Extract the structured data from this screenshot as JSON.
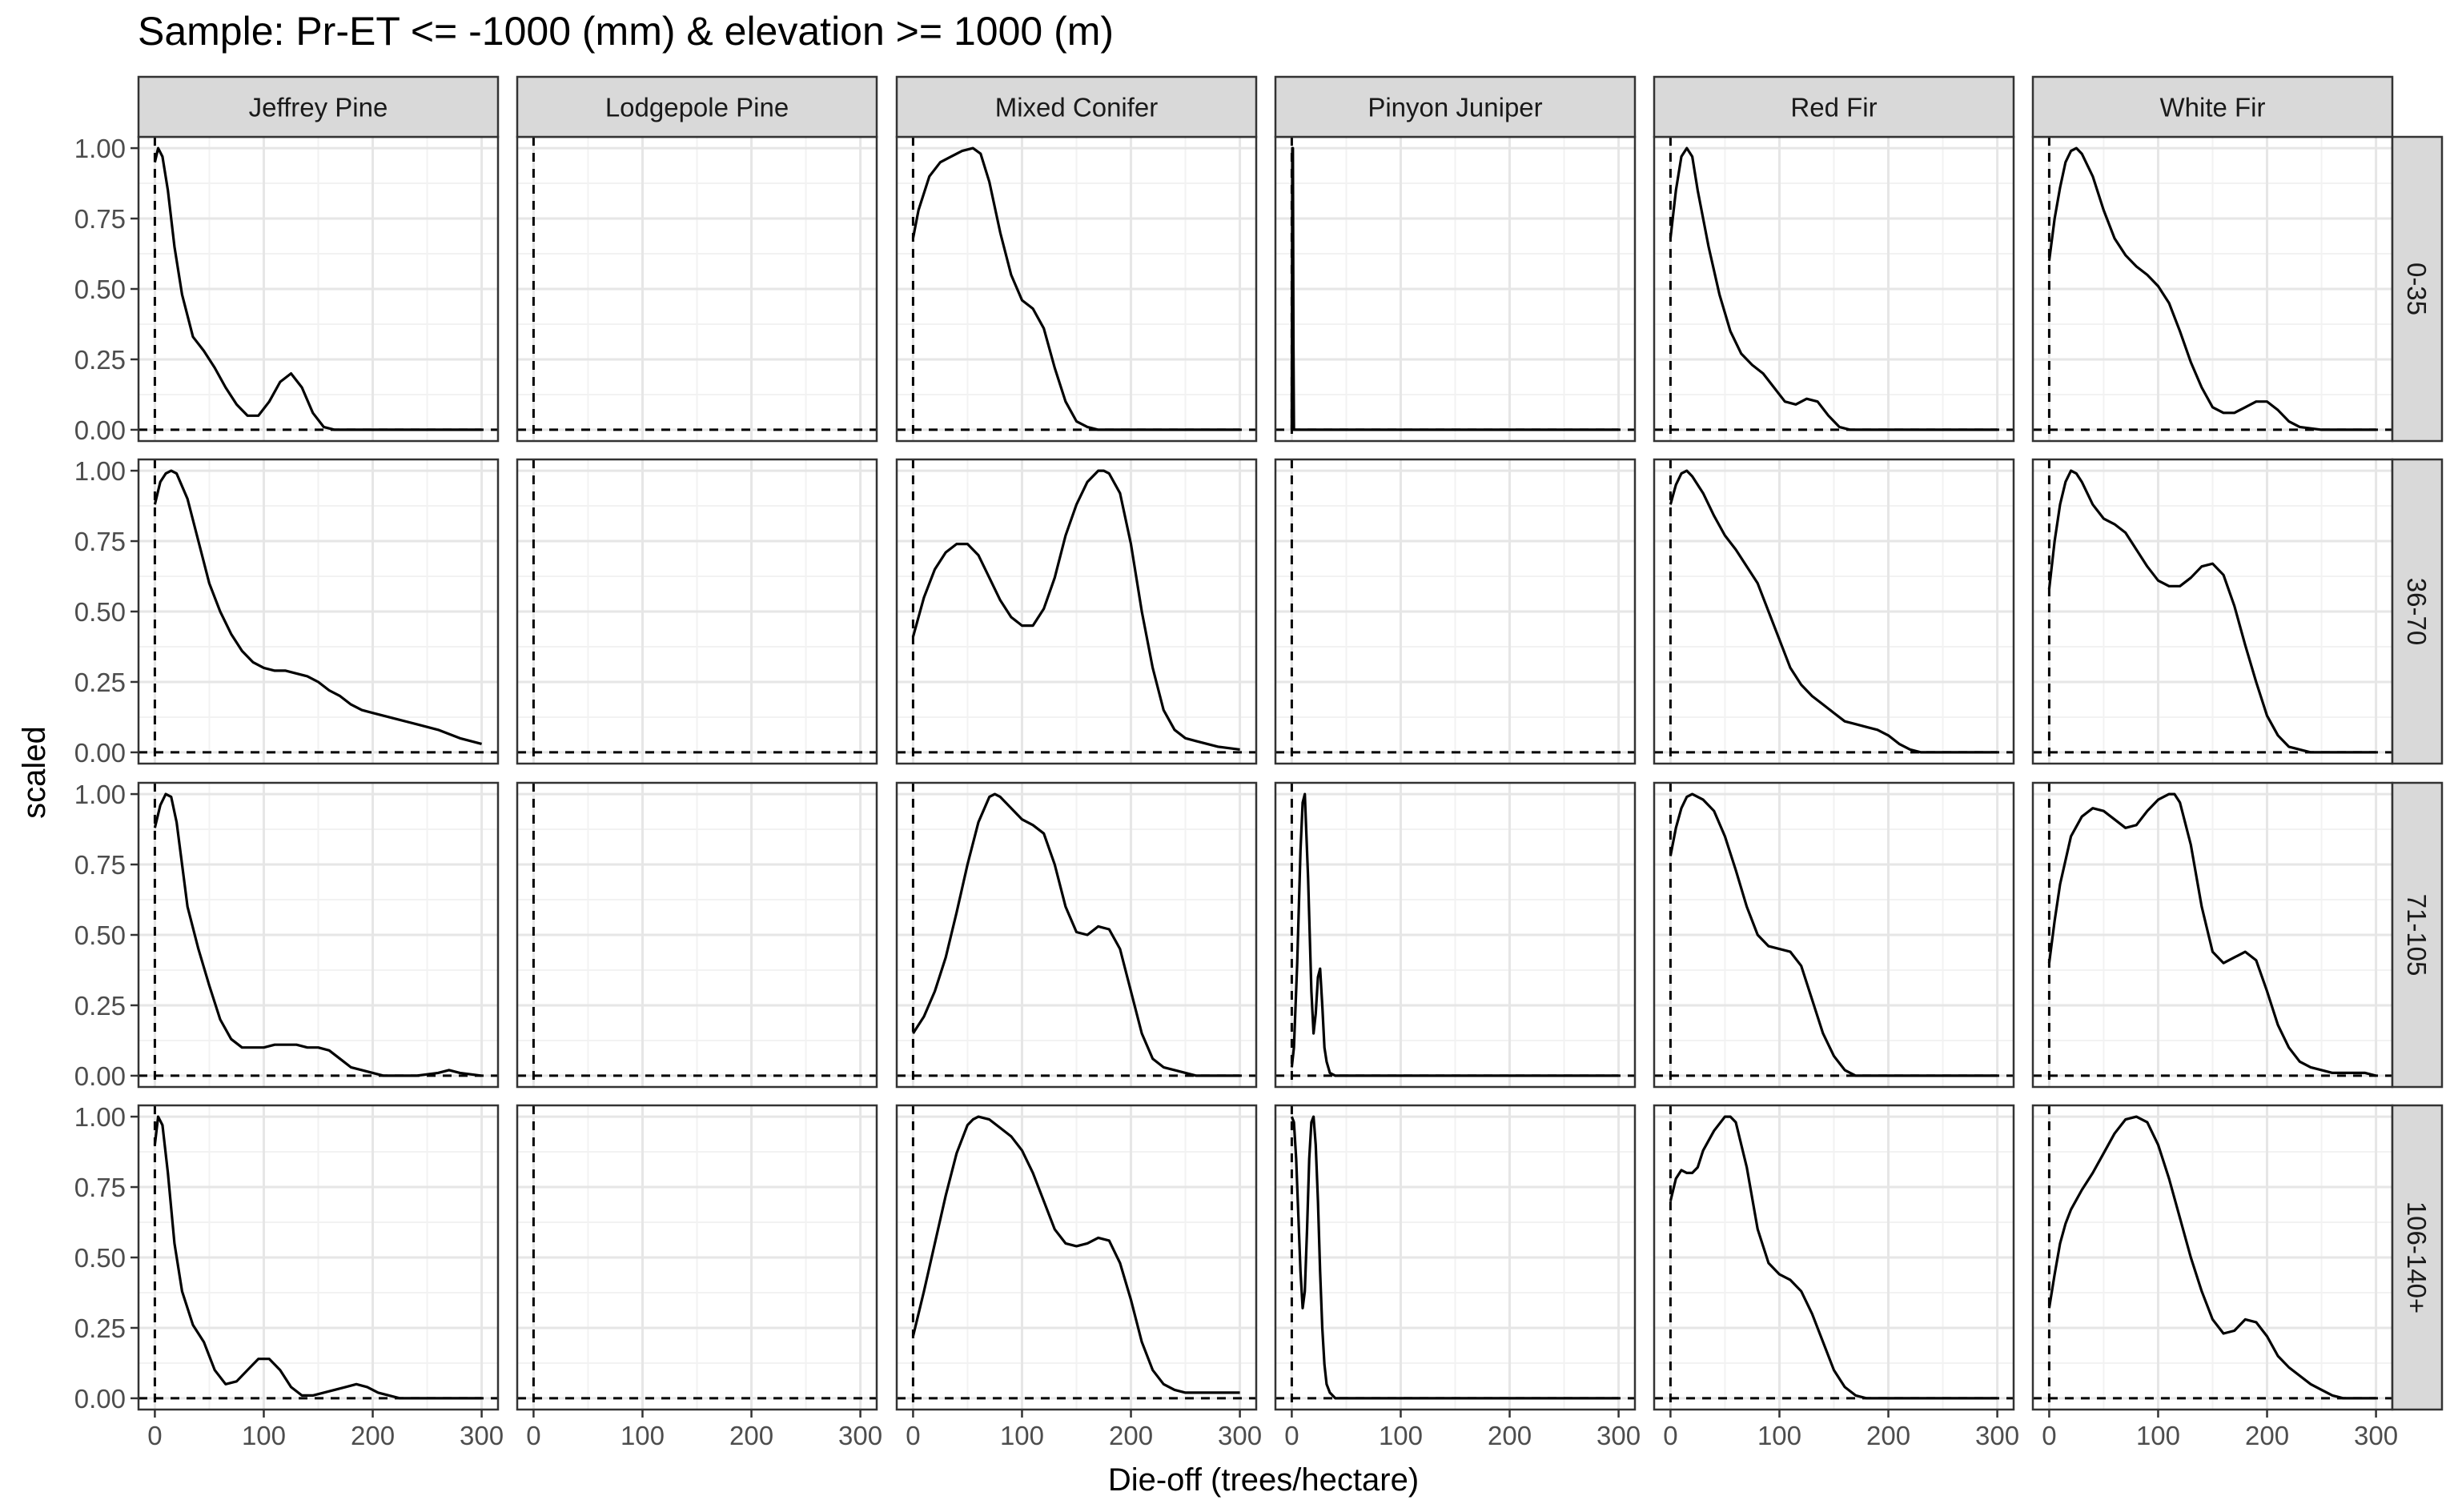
{
  "chart_data": {
    "type": "line",
    "title": "Sample: Pr-ET <= -1000 (mm) & elevation >= 1000 (m)",
    "xlabel": "Die-off (trees/hectare)",
    "ylabel": "scaled",
    "xlim": [
      -15,
      315
    ],
    "ylim": [
      -0.04,
      1.04
    ],
    "xticks": [
      0,
      100,
      200,
      300
    ],
    "yticks": [
      0.0,
      0.25,
      0.5,
      0.75,
      1.0
    ],
    "xtick_labels": [
      "0",
      "100",
      "200",
      "300"
    ],
    "ytick_labels": [
      "0.00",
      "0.25",
      "0.50",
      "0.75",
      "1.00"
    ],
    "grid": true,
    "columns": [
      "Jeffrey Pine",
      "Lodgepole Pine",
      "Mixed Conifer",
      "Pinyon Juniper",
      "Red Fir",
      "White Fir"
    ],
    "rows": [
      "0-35",
      "36-70",
      "71-105",
      "106-140+"
    ],
    "reference_lines": {
      "vertical_x": 0,
      "horizontal_y": 0,
      "style": "dashed"
    },
    "panels": [
      [
        {
          "x": [
            0,
            3,
            7,
            12,
            18,
            25,
            35,
            45,
            55,
            65,
            75,
            85,
            95,
            105,
            115,
            125,
            135,
            145,
            155,
            165,
            175,
            185,
            200,
            250,
            300
          ],
          "y": [
            0.95,
            1.0,
            0.97,
            0.85,
            0.65,
            0.48,
            0.33,
            0.28,
            0.22,
            0.15,
            0.09,
            0.05,
            0.05,
            0.1,
            0.17,
            0.2,
            0.15,
            0.06,
            0.01,
            0,
            0,
            0,
            0,
            0,
            0
          ]
        },
        {
          "x": [],
          "y": []
        },
        {
          "x": [
            0,
            5,
            15,
            25,
            35,
            45,
            55,
            62,
            70,
            80,
            90,
            100,
            110,
            120,
            130,
            140,
            150,
            160,
            170,
            180,
            200,
            250,
            300
          ],
          "y": [
            0.68,
            0.78,
            0.9,
            0.95,
            0.97,
            0.99,
            1.0,
            0.98,
            0.88,
            0.7,
            0.55,
            0.46,
            0.43,
            0.36,
            0.22,
            0.1,
            0.03,
            0.01,
            0,
            0,
            0,
            0,
            0
          ]
        },
        {
          "x": [
            0,
            0.5,
            1,
            1.5,
            2,
            3,
            300
          ],
          "y": [
            0.0,
            1.0,
            1.0,
            0.3,
            0.0,
            0.0,
            0.0
          ]
        },
        {
          "x": [
            0,
            5,
            10,
            15,
            20,
            25,
            35,
            45,
            55,
            65,
            75,
            85,
            95,
            105,
            115,
            125,
            135,
            145,
            155,
            165,
            180,
            200,
            250,
            300
          ],
          "y": [
            0.68,
            0.85,
            0.97,
            1.0,
            0.97,
            0.85,
            0.65,
            0.48,
            0.35,
            0.27,
            0.23,
            0.2,
            0.15,
            0.1,
            0.09,
            0.11,
            0.1,
            0.05,
            0.01,
            0,
            0,
            0,
            0,
            0
          ]
        },
        {
          "x": [
            0,
            5,
            10,
            15,
            20,
            25,
            30,
            40,
            50,
            60,
            70,
            80,
            90,
            100,
            110,
            120,
            130,
            140,
            150,
            160,
            170,
            180,
            190,
            200,
            210,
            220,
            230,
            250,
            300
          ],
          "y": [
            0.6,
            0.75,
            0.86,
            0.95,
            0.99,
            1.0,
            0.98,
            0.9,
            0.78,
            0.68,
            0.62,
            0.58,
            0.55,
            0.51,
            0.45,
            0.35,
            0.24,
            0.15,
            0.08,
            0.06,
            0.06,
            0.08,
            0.1,
            0.1,
            0.07,
            0.03,
            0.01,
            0,
            0
          ]
        }
      ],
      [
        {
          "x": [
            0,
            5,
            10,
            15,
            20,
            30,
            40,
            50,
            60,
            70,
            80,
            90,
            100,
            110,
            120,
            130,
            140,
            150,
            160,
            170,
            180,
            190,
            200,
            210,
            220,
            240,
            260,
            280,
            300
          ],
          "y": [
            0.88,
            0.96,
            0.99,
            1.0,
            0.99,
            0.9,
            0.75,
            0.6,
            0.5,
            0.42,
            0.36,
            0.32,
            0.3,
            0.29,
            0.29,
            0.28,
            0.27,
            0.25,
            0.22,
            0.2,
            0.17,
            0.15,
            0.14,
            0.13,
            0.12,
            0.1,
            0.08,
            0.05,
            0.03
          ]
        },
        {
          "x": [],
          "y": []
        },
        {
          "x": [
            0,
            10,
            20,
            30,
            40,
            50,
            60,
            70,
            80,
            90,
            100,
            110,
            120,
            130,
            140,
            150,
            160,
            170,
            175,
            180,
            190,
            200,
            210,
            220,
            230,
            240,
            250,
            260,
            270,
            280,
            300
          ],
          "y": [
            0.41,
            0.55,
            0.65,
            0.71,
            0.74,
            0.74,
            0.7,
            0.62,
            0.54,
            0.48,
            0.45,
            0.45,
            0.51,
            0.62,
            0.77,
            0.88,
            0.96,
            1.0,
            1.0,
            0.99,
            0.92,
            0.74,
            0.5,
            0.3,
            0.15,
            0.08,
            0.05,
            0.04,
            0.03,
            0.02,
            0.01
          ]
        },
        {
          "x": [],
          "y": []
        },
        {
          "x": [
            0,
            5,
            10,
            15,
            20,
            30,
            40,
            50,
            60,
            70,
            80,
            90,
            100,
            110,
            120,
            130,
            140,
            150,
            160,
            170,
            180,
            190,
            200,
            210,
            220,
            230,
            250,
            300
          ],
          "y": [
            0.88,
            0.95,
            0.99,
            1.0,
            0.98,
            0.92,
            0.84,
            0.77,
            0.72,
            0.66,
            0.6,
            0.5,
            0.4,
            0.3,
            0.24,
            0.2,
            0.17,
            0.14,
            0.11,
            0.1,
            0.09,
            0.08,
            0.06,
            0.03,
            0.01,
            0,
            0,
            0
          ]
        },
        {
          "x": [
            0,
            5,
            10,
            15,
            20,
            25,
            30,
            40,
            50,
            60,
            70,
            80,
            90,
            100,
            110,
            120,
            130,
            140,
            150,
            160,
            170,
            180,
            190,
            200,
            210,
            220,
            230,
            240,
            250,
            270,
            300
          ],
          "y": [
            0.58,
            0.75,
            0.88,
            0.96,
            1.0,
            0.99,
            0.96,
            0.88,
            0.83,
            0.81,
            0.78,
            0.72,
            0.66,
            0.61,
            0.59,
            0.59,
            0.62,
            0.66,
            0.67,
            0.63,
            0.52,
            0.38,
            0.25,
            0.13,
            0.06,
            0.02,
            0.01,
            0,
            0,
            0,
            0
          ]
        }
      ],
      [
        {
          "x": [
            0,
            5,
            10,
            15,
            20,
            25,
            30,
            40,
            50,
            60,
            70,
            80,
            90,
            100,
            110,
            120,
            130,
            140,
            150,
            160,
            170,
            180,
            190,
            200,
            210,
            220,
            240,
            260,
            270,
            280,
            300
          ],
          "y": [
            0.88,
            0.96,
            1.0,
            0.99,
            0.9,
            0.75,
            0.6,
            0.45,
            0.32,
            0.2,
            0.13,
            0.1,
            0.1,
            0.1,
            0.11,
            0.11,
            0.11,
            0.1,
            0.1,
            0.09,
            0.06,
            0.03,
            0.02,
            0.01,
            0,
            0,
            0,
            0.01,
            0.02,
            0.01,
            0
          ]
        },
        {
          "x": [],
          "y": []
        },
        {
          "x": [
            0,
            10,
            20,
            30,
            40,
            50,
            60,
            70,
            75,
            80,
            90,
            100,
            110,
            120,
            130,
            140,
            150,
            160,
            170,
            180,
            190,
            200,
            210,
            220,
            230,
            240,
            250,
            260,
            280,
            300
          ],
          "y": [
            0.15,
            0.21,
            0.3,
            0.42,
            0.58,
            0.75,
            0.9,
            0.99,
            1.0,
            0.99,
            0.95,
            0.91,
            0.89,
            0.86,
            0.75,
            0.6,
            0.51,
            0.5,
            0.53,
            0.52,
            0.45,
            0.3,
            0.15,
            0.06,
            0.03,
            0.02,
            0.01,
            0,
            0,
            0
          ]
        },
        {
          "x": [
            0,
            2,
            5,
            8,
            10,
            12,
            15,
            18,
            20,
            22,
            24,
            26,
            28,
            30,
            32,
            35,
            40,
            50,
            60,
            300
          ],
          "y": [
            0.03,
            0.1,
            0.4,
            0.8,
            0.97,
            1.0,
            0.7,
            0.3,
            0.15,
            0.22,
            0.35,
            0.38,
            0.25,
            0.1,
            0.05,
            0.01,
            0,
            0,
            0,
            0
          ]
        },
        {
          "x": [
            0,
            5,
            10,
            15,
            20,
            30,
            40,
            50,
            60,
            70,
            80,
            90,
            100,
            110,
            120,
            130,
            140,
            150,
            160,
            170,
            180,
            190,
            200,
            250,
            300
          ],
          "y": [
            0.78,
            0.88,
            0.95,
            0.99,
            1.0,
            0.98,
            0.94,
            0.85,
            0.73,
            0.6,
            0.5,
            0.46,
            0.45,
            0.44,
            0.39,
            0.27,
            0.15,
            0.07,
            0.02,
            0,
            0,
            0,
            0,
            0,
            0
          ]
        },
        {
          "x": [
            0,
            5,
            10,
            20,
            30,
            40,
            50,
            60,
            70,
            80,
            90,
            100,
            110,
            115,
            120,
            130,
            140,
            150,
            160,
            170,
            180,
            190,
            200,
            210,
            220,
            230,
            240,
            250,
            260,
            270,
            280,
            290,
            300
          ],
          "y": [
            0.4,
            0.55,
            0.68,
            0.85,
            0.92,
            0.95,
            0.94,
            0.91,
            0.88,
            0.89,
            0.94,
            0.98,
            1.0,
            1.0,
            0.97,
            0.82,
            0.6,
            0.44,
            0.4,
            0.42,
            0.44,
            0.41,
            0.3,
            0.18,
            0.1,
            0.05,
            0.03,
            0.02,
            0.01,
            0.01,
            0.01,
            0.01,
            0
          ]
        }
      ],
      [
        {
          "x": [
            0,
            3,
            7,
            12,
            18,
            25,
            35,
            45,
            55,
            65,
            75,
            85,
            95,
            105,
            115,
            125,
            135,
            145,
            155,
            165,
            175,
            185,
            195,
            205,
            215,
            225,
            250,
            300
          ],
          "y": [
            0.9,
            1.0,
            0.97,
            0.8,
            0.55,
            0.38,
            0.26,
            0.2,
            0.1,
            0.05,
            0.06,
            0.1,
            0.14,
            0.14,
            0.1,
            0.04,
            0.01,
            0.01,
            0.02,
            0.03,
            0.04,
            0.05,
            0.04,
            0.02,
            0.01,
            0,
            0,
            0
          ]
        },
        {
          "x": [],
          "y": []
        },
        {
          "x": [
            0,
            10,
            20,
            30,
            40,
            50,
            55,
            60,
            70,
            80,
            90,
            100,
            110,
            120,
            130,
            140,
            150,
            160,
            170,
            180,
            190,
            200,
            210,
            220,
            230,
            240,
            250,
            260,
            270,
            280,
            300
          ],
          "y": [
            0.22,
            0.38,
            0.55,
            0.72,
            0.87,
            0.97,
            0.99,
            1.0,
            0.99,
            0.96,
            0.93,
            0.88,
            0.8,
            0.7,
            0.6,
            0.55,
            0.54,
            0.55,
            0.57,
            0.56,
            0.48,
            0.35,
            0.2,
            0.1,
            0.05,
            0.03,
            0.02,
            0.02,
            0.02,
            0.02,
            0.02
          ]
        },
        {
          "x": [
            0,
            2,
            4,
            6,
            8,
            10,
            12,
            14,
            16,
            18,
            20,
            22,
            24,
            26,
            28,
            30,
            32,
            35,
            40,
            60,
            300
          ],
          "y": [
            1.0,
            0.98,
            0.85,
            0.65,
            0.45,
            0.32,
            0.38,
            0.6,
            0.85,
            0.98,
            1.0,
            0.9,
            0.7,
            0.45,
            0.25,
            0.12,
            0.05,
            0.02,
            0,
            0,
            0
          ]
        },
        {
          "x": [
            0,
            5,
            10,
            15,
            20,
            25,
            30,
            40,
            50,
            55,
            60,
            70,
            80,
            90,
            100,
            110,
            120,
            130,
            140,
            150,
            160,
            170,
            180,
            190,
            200,
            250,
            300
          ],
          "y": [
            0.7,
            0.78,
            0.81,
            0.8,
            0.8,
            0.82,
            0.88,
            0.95,
            1.0,
            1.0,
            0.98,
            0.82,
            0.6,
            0.48,
            0.44,
            0.42,
            0.38,
            0.3,
            0.2,
            0.1,
            0.04,
            0.01,
            0,
            0,
            0,
            0,
            0
          ]
        },
        {
          "x": [
            0,
            5,
            10,
            15,
            20,
            30,
            40,
            50,
            60,
            70,
            80,
            90,
            100,
            110,
            120,
            130,
            140,
            150,
            160,
            170,
            180,
            190,
            200,
            210,
            220,
            230,
            240,
            250,
            260,
            270,
            280,
            300
          ],
          "y": [
            0.32,
            0.44,
            0.55,
            0.62,
            0.67,
            0.74,
            0.8,
            0.87,
            0.94,
            0.99,
            1.0,
            0.98,
            0.9,
            0.78,
            0.64,
            0.5,
            0.38,
            0.28,
            0.23,
            0.24,
            0.28,
            0.27,
            0.22,
            0.15,
            0.11,
            0.08,
            0.05,
            0.03,
            0.01,
            0,
            0,
            0
          ]
        }
      ]
    ]
  }
}
